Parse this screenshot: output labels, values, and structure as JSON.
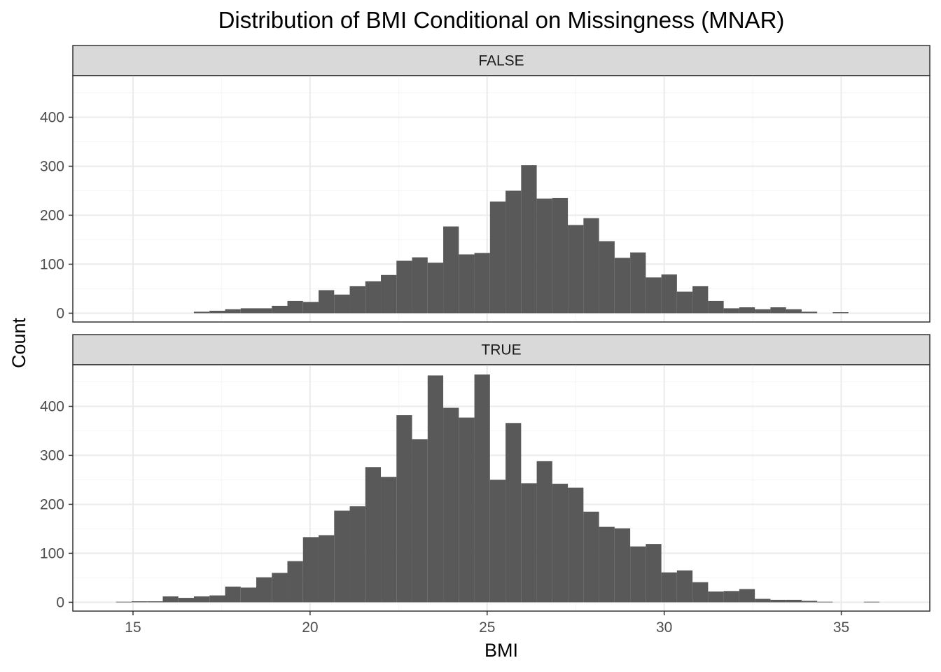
{
  "chart_data": {
    "type": "bar",
    "title": "Distribution of BMI Conditional on Missingness (MNAR)",
    "xlabel": "BMI",
    "ylabel": "Count",
    "xlim": [
      13.3,
      37.5
    ],
    "ylim": [
      -18,
      485
    ],
    "x_ticks": [
      15,
      20,
      25,
      30,
      35
    ],
    "y_ticks": [
      0,
      100,
      200,
      300,
      400
    ],
    "grid": true,
    "bin_start": 14.52,
    "bin_width": 0.44,
    "panels": [
      {
        "label": "FALSE",
        "values": [
          0,
          0,
          0,
          0,
          0,
          3,
          5,
          8,
          10,
          10,
          15,
          25,
          23,
          47,
          38,
          55,
          65,
          78,
          107,
          114,
          103,
          177,
          120,
          123,
          228,
          250,
          302,
          234,
          235,
          180,
          194,
          147,
          113,
          124,
          73,
          79,
          44,
          55,
          25,
          10,
          12,
          8,
          12,
          8,
          3,
          0,
          2,
          0,
          0,
          0,
          0,
          0
        ]
      },
      {
        "label": "TRUE",
        "values": [
          1,
          2,
          2,
          12,
          9,
          12,
          14,
          32,
          30,
          51,
          60,
          84,
          133,
          137,
          187,
          196,
          276,
          256,
          382,
          333,
          463,
          397,
          377,
          465,
          250,
          366,
          243,
          288,
          242,
          234,
          185,
          154,
          151,
          114,
          119,
          61,
          65,
          41,
          22,
          23,
          27,
          7,
          5,
          5,
          3,
          1,
          0,
          0,
          1,
          0,
          0,
          0
        ]
      }
    ]
  },
  "colors": {
    "bar": "#595959",
    "strip_fill": "#d9d9d9",
    "panel_border": "#333333",
    "grid_major": "#ebebeb",
    "grid_minor": "#f5f5f5"
  }
}
